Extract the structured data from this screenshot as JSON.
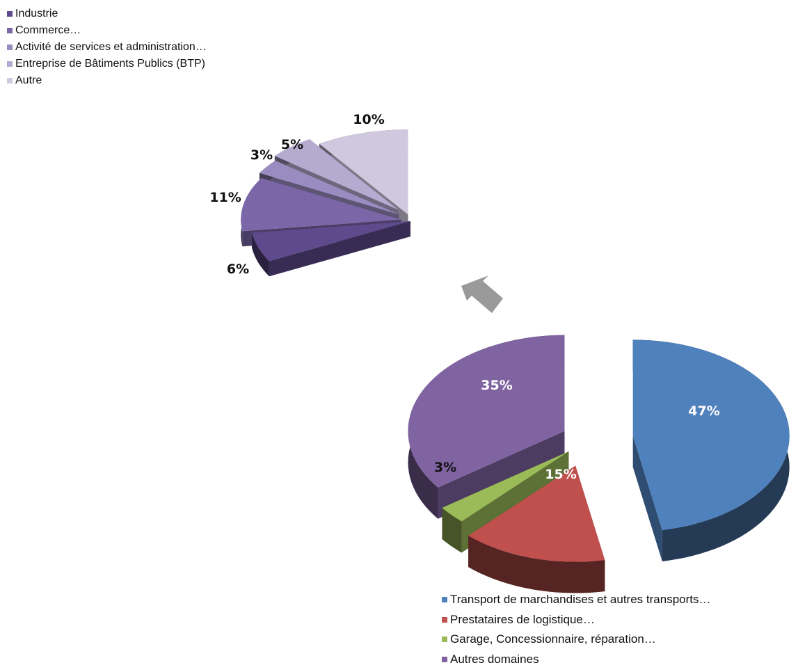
{
  "chart_data": [
    {
      "type": "pie",
      "variant": "3d-exploded-partial",
      "title": "",
      "legend_position": "top-left",
      "series": [
        {
          "name": "Industrie",
          "value": 6,
          "label": "6%",
          "color": "#5e4a8c"
        },
        {
          "name": "Commerce…",
          "value": 11,
          "label": "11%",
          "color": "#7b66a8"
        },
        {
          "name": "Activité de services et administration…",
          "value": 3,
          "label": "3%",
          "color": "#9a8cc0"
        },
        {
          "name": "Entreprise de Bâtiments Publics (BTP)",
          "value": 5,
          "label": "5%",
          "color": "#b5abd0"
        },
        {
          "name": "Autre",
          "value": 10,
          "label": "10%",
          "color": "#cfc8de"
        }
      ]
    },
    {
      "type": "pie",
      "variant": "3d-exploded",
      "title": "",
      "legend_position": "bottom-right",
      "series": [
        {
          "name": "Transport de marchandises et autres transports…",
          "value": 47,
          "label": "47%",
          "color": "#4f81bd"
        },
        {
          "name": "Prestataires de logistique…",
          "value": 15,
          "label": "15%",
          "color": "#c0504d"
        },
        {
          "name": "Garage, Concessionnaire, réparation…",
          "value": 3,
          "label": "3%",
          "color": "#9bbb59"
        },
        {
          "name": "Autres domaines",
          "value": 35,
          "label": "35%",
          "color": "#8064a2"
        }
      ]
    }
  ]
}
